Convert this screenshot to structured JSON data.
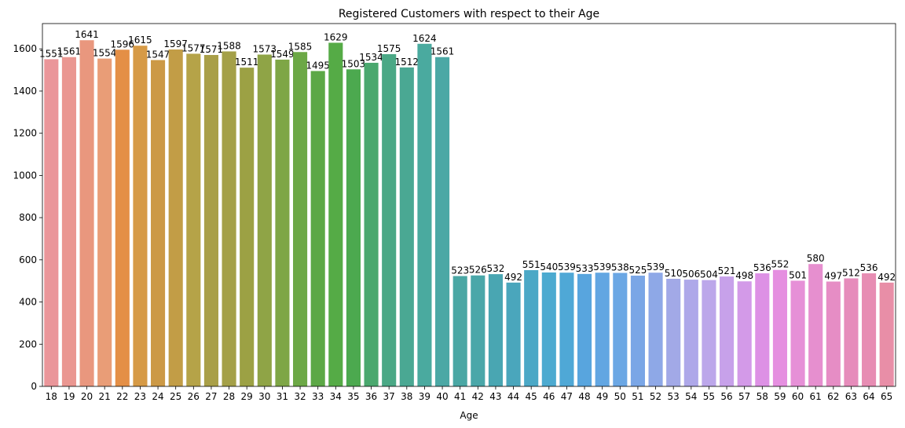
{
  "chart_data": {
    "type": "bar",
    "title": "Registered Customers with respect to their Age",
    "xlabel": "Age",
    "ylabel": "",
    "ylim": [
      0,
      1720
    ],
    "yticks": [
      0,
      200,
      400,
      600,
      800,
      1000,
      1200,
      1400,
      1600
    ],
    "grid": false,
    "categories": [
      "18",
      "19",
      "20",
      "21",
      "22",
      "23",
      "24",
      "25",
      "26",
      "27",
      "28",
      "29",
      "30",
      "31",
      "32",
      "33",
      "34",
      "35",
      "36",
      "37",
      "38",
      "39",
      "40",
      "41",
      "42",
      "43",
      "44",
      "45",
      "46",
      "47",
      "48",
      "49",
      "50",
      "51",
      "52",
      "53",
      "54",
      "55",
      "56",
      "57",
      "58",
      "59",
      "60",
      "61",
      "62",
      "63",
      "64",
      "65"
    ],
    "values": [
      1551,
      1561,
      1641,
      1554,
      1596,
      1615,
      1547,
      1597,
      1577,
      1571,
      1588,
      1511,
      1573,
      1549,
      1585,
      1495,
      1629,
      1503,
      1534,
      1575,
      1512,
      1624,
      1561,
      523,
      526,
      532,
      492,
      551,
      540,
      539,
      533,
      539,
      538,
      525,
      539,
      510,
      506,
      504,
      521,
      498,
      536,
      552,
      501,
      580,
      497,
      512,
      536,
      492
    ],
    "colors": [
      "#ea969a",
      "#ea9791",
      "#e9977e",
      "#e99d77",
      "#e48f46",
      "#d69a46",
      "#cc9946",
      "#c29d46",
      "#b5a348",
      "#a99f48",
      "#a4a048",
      "#9ca144",
      "#8fa446",
      "#7ea646",
      "#6ca846",
      "#5ca846",
      "#55ab46",
      "#4ca94f",
      "#4aa86e",
      "#4aa885",
      "#4aa893",
      "#4aaa9f",
      "#4ba8a5",
      "#4aa7a4",
      "#4aa7a9",
      "#49a6b2",
      "#4aa6bc",
      "#4ba8c6",
      "#4caad0",
      "#4fa8d6",
      "#58a5de",
      "#62a6e2",
      "#6ba7e4",
      "#7aa6e6",
      "#8ea8e7",
      "#a2a9e7",
      "#aea8e9",
      "#bca7ea",
      "#c7a1ea",
      "#d39ae8",
      "#dd91e5",
      "#e58fe0",
      "#e690d7",
      "#e68fcf",
      "#e68dc5",
      "#e68cbb",
      "#e78db3",
      "#e88ea7"
    ]
  }
}
